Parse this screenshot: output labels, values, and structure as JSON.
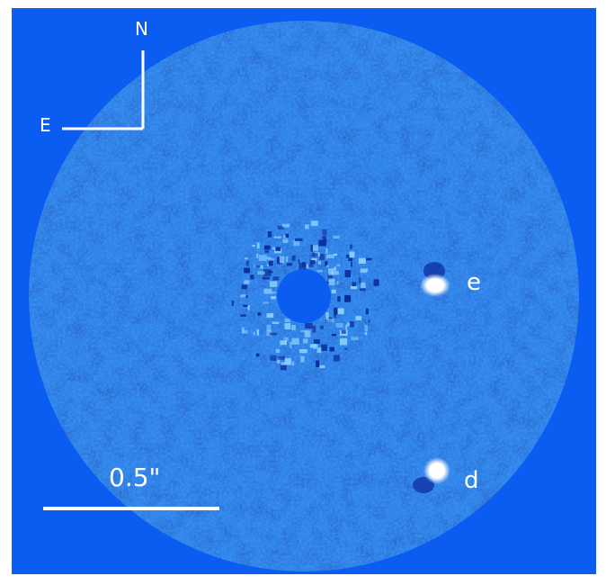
{
  "figure": {
    "compass": {
      "north": "N",
      "east": "E"
    },
    "scale_bar": {
      "label": "0.5\""
    },
    "planets": [
      {
        "id": "e",
        "label": "e"
      },
      {
        "id": "d",
        "label": "d"
      }
    ],
    "colors": {
      "background": "#0b5cf0",
      "field_base": "#2f82e6",
      "speckle_light": "#8ad0ff",
      "speckle_dark": "#0a2a9a",
      "mask": "#0b5cf0",
      "markers": "#ffffff"
    }
  }
}
